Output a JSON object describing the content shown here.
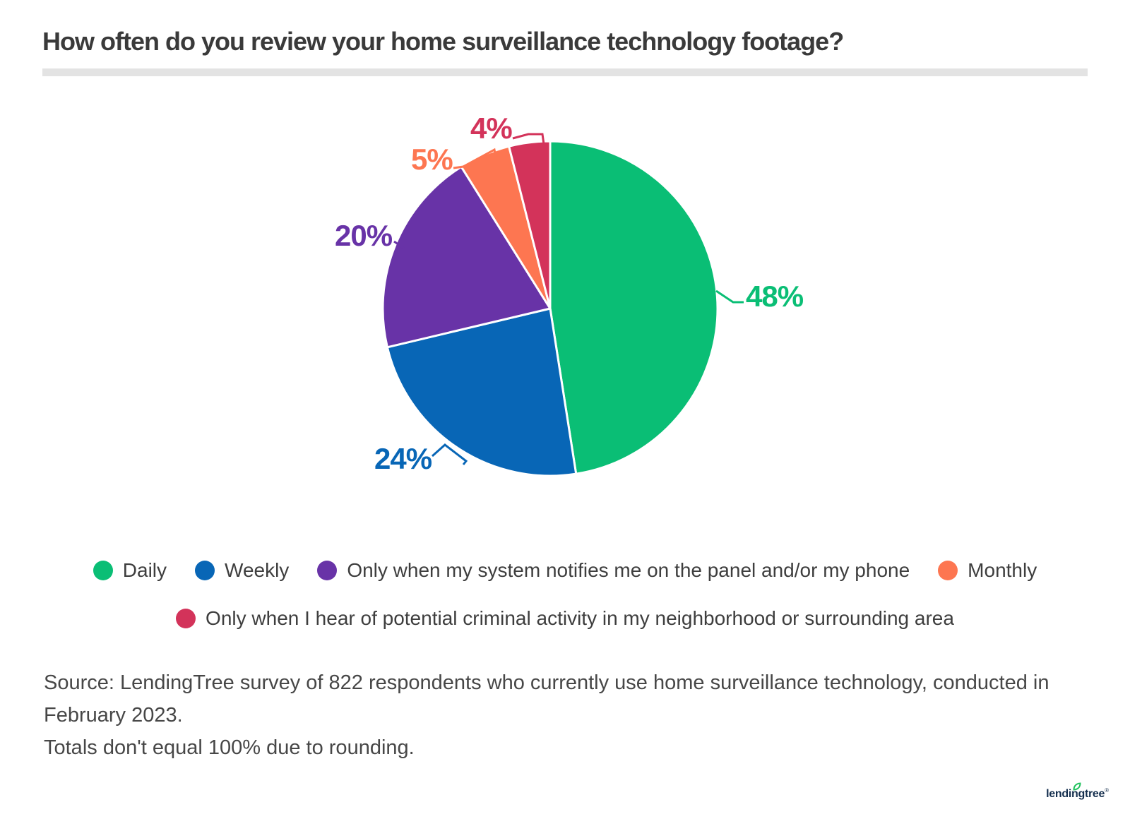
{
  "header": {
    "title": "How often do you review your home surveillance technology footage?"
  },
  "chart_data": {
    "type": "pie",
    "title": "How often do you review your home surveillance technology footage?",
    "direction": "clockwise",
    "start_angle_deg": 0,
    "legend_position": "bottom",
    "series": [
      {
        "id": "daily",
        "label": "Daily",
        "value": 48,
        "display": "48%",
        "color": "#0abe75"
      },
      {
        "id": "weekly",
        "label": "Weekly",
        "value": 24,
        "display": "24%",
        "color": "#0866b6"
      },
      {
        "id": "system-notifies",
        "label": "Only when my system notifies me on the panel and/or my phone",
        "value": 20,
        "display": "20%",
        "color": "#6833a7"
      },
      {
        "id": "monthly",
        "label": "Monthly",
        "value": 5,
        "display": "5%",
        "color": "#fd7651"
      },
      {
        "id": "criminal-activity",
        "label": "Only when I hear of potential criminal activity in my neighborhood or surrounding area",
        "value": 4,
        "display": "4%",
        "color": "#d3335a"
      }
    ]
  },
  "source": {
    "line1": "Source: LendingTree survey of 822 respondents who currently use home surveillance technology, conducted in February 2023.",
    "line2": "Totals don't equal 100% due to rounding."
  },
  "branding": {
    "logo_text": "lendingtree",
    "trademark": "®",
    "leaf_color": "#21c25e",
    "text_color": "#152f4e"
  }
}
